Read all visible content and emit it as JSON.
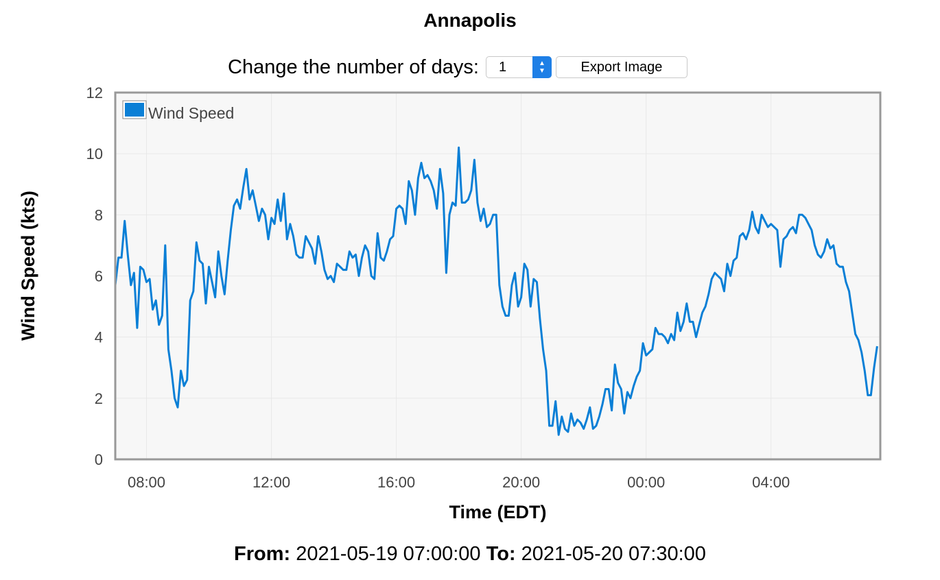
{
  "chart_data": {
    "type": "line",
    "title": "Annapolis",
    "xlabel": "Time (EDT)",
    "ylabel": "Wind Speed (kts)",
    "ylim": [
      0,
      12
    ],
    "xlim": [
      "2021-05-19 07:00",
      "2021-05-20 07:30"
    ],
    "yticks": [
      "0",
      "2",
      "4",
      "6",
      "8",
      "10",
      "12"
    ],
    "xticks": [
      {
        "label": "08:00",
        "t": "2021-05-19 08:00"
      },
      {
        "label": "12:00",
        "t": "2021-05-19 12:00"
      },
      {
        "label": "16:00",
        "t": "2021-05-19 16:00"
      },
      {
        "label": "20:00",
        "t": "2021-05-19 20:00"
      },
      {
        "label": "00:00",
        "t": "2021-05-20 00:00"
      },
      {
        "label": "04:00",
        "t": "2021-05-20 04:00"
      }
    ],
    "grid": true,
    "legend_position": "top-left",
    "series": [
      {
        "name": "Wind Speed",
        "color": "#0a7fd6",
        "points": [
          [
            "2021-05-19 07:00",
            5.7
          ],
          [
            "2021-05-19 07:06",
            6.6
          ],
          [
            "2021-05-19 07:12",
            6.6
          ],
          [
            "2021-05-19 07:18",
            7.8
          ],
          [
            "2021-05-19 07:24",
            6.7
          ],
          [
            "2021-05-19 07:30",
            5.7
          ],
          [
            "2021-05-19 07:36",
            6.1
          ],
          [
            "2021-05-19 07:42",
            4.3
          ],
          [
            "2021-05-19 07:48",
            6.3
          ],
          [
            "2021-05-19 07:54",
            6.2
          ],
          [
            "2021-05-19 08:00",
            5.8
          ],
          [
            "2021-05-19 08:06",
            5.9
          ],
          [
            "2021-05-19 08:12",
            4.9
          ],
          [
            "2021-05-19 08:18",
            5.2
          ],
          [
            "2021-05-19 08:24",
            4.4
          ],
          [
            "2021-05-19 08:30",
            4.7
          ],
          [
            "2021-05-19 08:36",
            7.0
          ],
          [
            "2021-05-19 08:42",
            3.6
          ],
          [
            "2021-05-19 08:48",
            2.9
          ],
          [
            "2021-05-19 08:54",
            2.0
          ],
          [
            "2021-05-19 09:00",
            1.7
          ],
          [
            "2021-05-19 09:06",
            2.9
          ],
          [
            "2021-05-19 09:12",
            2.4
          ],
          [
            "2021-05-19 09:18",
            2.6
          ],
          [
            "2021-05-19 09:24",
            5.2
          ],
          [
            "2021-05-19 09:30",
            5.5
          ],
          [
            "2021-05-19 09:36",
            7.1
          ],
          [
            "2021-05-19 09:42",
            6.5
          ],
          [
            "2021-05-19 09:48",
            6.4
          ],
          [
            "2021-05-19 09:54",
            5.1
          ],
          [
            "2021-05-19 10:00",
            6.3
          ],
          [
            "2021-05-19 10:06",
            5.8
          ],
          [
            "2021-05-19 10:12",
            5.3
          ],
          [
            "2021-05-19 10:18",
            6.8
          ],
          [
            "2021-05-19 10:24",
            6.0
          ],
          [
            "2021-05-19 10:30",
            5.4
          ],
          [
            "2021-05-19 10:36",
            6.5
          ],
          [
            "2021-05-19 10:42",
            7.5
          ],
          [
            "2021-05-19 10:48",
            8.3
          ],
          [
            "2021-05-19 10:54",
            8.5
          ],
          [
            "2021-05-19 11:00",
            8.2
          ],
          [
            "2021-05-19 11:06",
            8.9
          ],
          [
            "2021-05-19 11:12",
            9.5
          ],
          [
            "2021-05-19 11:18",
            8.5
          ],
          [
            "2021-05-19 11:24",
            8.8
          ],
          [
            "2021-05-19 11:30",
            8.3
          ],
          [
            "2021-05-19 11:36",
            7.8
          ],
          [
            "2021-05-19 11:42",
            8.2
          ],
          [
            "2021-05-19 11:48",
            8.0
          ],
          [
            "2021-05-19 11:54",
            7.2
          ],
          [
            "2021-05-19 12:00",
            7.9
          ],
          [
            "2021-05-19 12:06",
            7.7
          ],
          [
            "2021-05-19 12:12",
            8.5
          ],
          [
            "2021-05-19 12:18",
            7.8
          ],
          [
            "2021-05-19 12:24",
            8.7
          ],
          [
            "2021-05-19 12:30",
            7.2
          ],
          [
            "2021-05-19 12:36",
            7.7
          ],
          [
            "2021-05-19 12:42",
            7.3
          ],
          [
            "2021-05-19 12:48",
            6.7
          ],
          [
            "2021-05-19 12:54",
            6.6
          ],
          [
            "2021-05-19 13:00",
            6.6
          ],
          [
            "2021-05-19 13:06",
            7.3
          ],
          [
            "2021-05-19 13:12",
            7.1
          ],
          [
            "2021-05-19 13:18",
            6.9
          ],
          [
            "2021-05-19 13:24",
            6.4
          ],
          [
            "2021-05-19 13:30",
            7.3
          ],
          [
            "2021-05-19 13:36",
            6.8
          ],
          [
            "2021-05-19 13:42",
            6.2
          ],
          [
            "2021-05-19 13:48",
            5.9
          ],
          [
            "2021-05-19 13:54",
            6.0
          ],
          [
            "2021-05-19 14:00",
            5.8
          ],
          [
            "2021-05-19 14:06",
            6.4
          ],
          [
            "2021-05-19 14:12",
            6.3
          ],
          [
            "2021-05-19 14:18",
            6.2
          ],
          [
            "2021-05-19 14:24",
            6.2
          ],
          [
            "2021-05-19 14:30",
            6.8
          ],
          [
            "2021-05-19 14:36",
            6.6
          ],
          [
            "2021-05-19 14:42",
            6.7
          ],
          [
            "2021-05-19 14:48",
            6.0
          ],
          [
            "2021-05-19 14:54",
            6.6
          ],
          [
            "2021-05-19 15:00",
            7.0
          ],
          [
            "2021-05-19 15:06",
            6.8
          ],
          [
            "2021-05-19 15:12",
            6.0
          ],
          [
            "2021-05-19 15:18",
            5.9
          ],
          [
            "2021-05-19 15:24",
            7.4
          ],
          [
            "2021-05-19 15:30",
            6.6
          ],
          [
            "2021-05-19 15:36",
            6.5
          ],
          [
            "2021-05-19 15:42",
            6.8
          ],
          [
            "2021-05-19 15:48",
            7.2
          ],
          [
            "2021-05-19 15:54",
            7.3
          ],
          [
            "2021-05-19 16:00",
            8.2
          ],
          [
            "2021-05-19 16:06",
            8.3
          ],
          [
            "2021-05-19 16:12",
            8.2
          ],
          [
            "2021-05-19 16:18",
            7.7
          ],
          [
            "2021-05-19 16:24",
            9.1
          ],
          [
            "2021-05-19 16:30",
            8.8
          ],
          [
            "2021-05-19 16:36",
            8.0
          ],
          [
            "2021-05-19 16:42",
            9.2
          ],
          [
            "2021-05-19 16:48",
            9.7
          ],
          [
            "2021-05-19 16:54",
            9.2
          ],
          [
            "2021-05-19 17:00",
            9.3
          ],
          [
            "2021-05-19 17:06",
            9.1
          ],
          [
            "2021-05-19 17:12",
            8.8
          ],
          [
            "2021-05-19 17:18",
            8.2
          ],
          [
            "2021-05-19 17:24",
            9.5
          ],
          [
            "2021-05-19 17:30",
            8.7
          ],
          [
            "2021-05-19 17:36",
            6.1
          ],
          [
            "2021-05-19 17:42",
            8.0
          ],
          [
            "2021-05-19 17:48",
            8.4
          ],
          [
            "2021-05-19 17:54",
            8.3
          ],
          [
            "2021-05-19 18:00",
            10.2
          ],
          [
            "2021-05-19 18:06",
            8.4
          ],
          [
            "2021-05-19 18:12",
            8.4
          ],
          [
            "2021-05-19 18:18",
            8.5
          ],
          [
            "2021-05-19 18:24",
            8.8
          ],
          [
            "2021-05-19 18:30",
            9.8
          ],
          [
            "2021-05-19 18:36",
            8.4
          ],
          [
            "2021-05-19 18:42",
            7.8
          ],
          [
            "2021-05-19 18:48",
            8.2
          ],
          [
            "2021-05-19 18:54",
            7.6
          ],
          [
            "2021-05-19 19:00",
            7.7
          ],
          [
            "2021-05-19 19:06",
            8.0
          ],
          [
            "2021-05-19 19:12",
            8.0
          ],
          [
            "2021-05-19 19:18",
            5.7
          ],
          [
            "2021-05-19 19:24",
            5.0
          ],
          [
            "2021-05-19 19:30",
            4.7
          ],
          [
            "2021-05-19 19:36",
            4.7
          ],
          [
            "2021-05-19 19:42",
            5.7
          ],
          [
            "2021-05-19 19:48",
            6.1
          ],
          [
            "2021-05-19 19:54",
            5.0
          ],
          [
            "2021-05-19 20:00",
            5.3
          ],
          [
            "2021-05-19 20:06",
            6.4
          ],
          [
            "2021-05-19 20:12",
            6.2
          ],
          [
            "2021-05-19 20:18",
            5.0
          ],
          [
            "2021-05-19 20:24",
            5.9
          ],
          [
            "2021-05-19 20:30",
            5.8
          ],
          [
            "2021-05-19 20:36",
            4.6
          ],
          [
            "2021-05-19 20:42",
            3.6
          ],
          [
            "2021-05-19 20:48",
            2.9
          ],
          [
            "2021-05-19 20:54",
            1.1
          ],
          [
            "2021-05-19 21:00",
            1.1
          ],
          [
            "2021-05-19 21:06",
            1.9
          ],
          [
            "2021-05-19 21:12",
            0.8
          ],
          [
            "2021-05-19 21:18",
            1.4
          ],
          [
            "2021-05-19 21:24",
            1.0
          ],
          [
            "2021-05-19 21:30",
            0.9
          ],
          [
            "2021-05-19 21:36",
            1.5
          ],
          [
            "2021-05-19 21:42",
            1.1
          ],
          [
            "2021-05-19 21:48",
            1.3
          ],
          [
            "2021-05-19 21:54",
            1.2
          ],
          [
            "2021-05-19 22:00",
            1.0
          ],
          [
            "2021-05-19 22:06",
            1.3
          ],
          [
            "2021-05-19 22:12",
            1.7
          ],
          [
            "2021-05-19 22:18",
            1.0
          ],
          [
            "2021-05-19 22:24",
            1.1
          ],
          [
            "2021-05-19 22:30",
            1.4
          ],
          [
            "2021-05-19 22:36",
            1.8
          ],
          [
            "2021-05-19 22:42",
            2.3
          ],
          [
            "2021-05-19 22:48",
            2.3
          ],
          [
            "2021-05-19 22:54",
            1.6
          ],
          [
            "2021-05-19 23:00",
            3.1
          ],
          [
            "2021-05-19 23:06",
            2.5
          ],
          [
            "2021-05-19 23:12",
            2.3
          ],
          [
            "2021-05-19 23:18",
            1.5
          ],
          [
            "2021-05-19 23:24",
            2.2
          ],
          [
            "2021-05-19 23:30",
            2.0
          ],
          [
            "2021-05-19 23:36",
            2.4
          ],
          [
            "2021-05-19 23:42",
            2.7
          ],
          [
            "2021-05-19 23:48",
            2.9
          ],
          [
            "2021-05-19 23:54",
            3.8
          ],
          [
            "2021-05-20 00:00",
            3.4
          ],
          [
            "2021-05-20 00:06",
            3.5
          ],
          [
            "2021-05-20 00:12",
            3.6
          ],
          [
            "2021-05-20 00:18",
            4.3
          ],
          [
            "2021-05-20 00:24",
            4.1
          ],
          [
            "2021-05-20 00:30",
            4.1
          ],
          [
            "2021-05-20 00:36",
            4.0
          ],
          [
            "2021-05-20 00:42",
            3.8
          ],
          [
            "2021-05-20 00:48",
            4.1
          ],
          [
            "2021-05-20 00:54",
            3.9
          ],
          [
            "2021-05-20 01:00",
            4.8
          ],
          [
            "2021-05-20 01:06",
            4.2
          ],
          [
            "2021-05-20 01:12",
            4.5
          ],
          [
            "2021-05-20 01:18",
            5.1
          ],
          [
            "2021-05-20 01:24",
            4.5
          ],
          [
            "2021-05-20 01:30",
            4.5
          ],
          [
            "2021-05-20 01:36",
            4.0
          ],
          [
            "2021-05-20 01:42",
            4.4
          ],
          [
            "2021-05-20 01:48",
            4.8
          ],
          [
            "2021-05-20 01:54",
            5.0
          ],
          [
            "2021-05-20 02:00",
            5.4
          ],
          [
            "2021-05-20 02:06",
            5.9
          ],
          [
            "2021-05-20 02:12",
            6.1
          ],
          [
            "2021-05-20 02:18",
            6.0
          ],
          [
            "2021-05-20 02:24",
            5.9
          ],
          [
            "2021-05-20 02:30",
            5.5
          ],
          [
            "2021-05-20 02:36",
            6.4
          ],
          [
            "2021-05-20 02:42",
            6.0
          ],
          [
            "2021-05-20 02:48",
            6.5
          ],
          [
            "2021-05-20 02:54",
            6.6
          ],
          [
            "2021-05-20 03:00",
            7.3
          ],
          [
            "2021-05-20 03:06",
            7.4
          ],
          [
            "2021-05-20 03:12",
            7.2
          ],
          [
            "2021-05-20 03:18",
            7.5
          ],
          [
            "2021-05-20 03:24",
            8.1
          ],
          [
            "2021-05-20 03:30",
            7.6
          ],
          [
            "2021-05-20 03:36",
            7.4
          ],
          [
            "2021-05-20 03:42",
            8.0
          ],
          [
            "2021-05-20 03:48",
            7.8
          ],
          [
            "2021-05-20 03:54",
            7.6
          ],
          [
            "2021-05-20 04:00",
            7.7
          ],
          [
            "2021-05-20 04:06",
            7.6
          ],
          [
            "2021-05-20 04:12",
            7.5
          ],
          [
            "2021-05-20 04:18",
            6.3
          ],
          [
            "2021-05-20 04:24",
            7.2
          ],
          [
            "2021-05-20 04:30",
            7.3
          ],
          [
            "2021-05-20 04:36",
            7.5
          ],
          [
            "2021-05-20 04:42",
            7.6
          ],
          [
            "2021-05-20 04:48",
            7.4
          ],
          [
            "2021-05-20 04:54",
            8.0
          ],
          [
            "2021-05-20 05:00",
            8.0
          ],
          [
            "2021-05-20 05:06",
            7.9
          ],
          [
            "2021-05-20 05:12",
            7.7
          ],
          [
            "2021-05-20 05:18",
            7.5
          ],
          [
            "2021-05-20 05:24",
            7.0
          ],
          [
            "2021-05-20 05:30",
            6.7
          ],
          [
            "2021-05-20 05:36",
            6.6
          ],
          [
            "2021-05-20 05:42",
            6.8
          ],
          [
            "2021-05-20 05:48",
            7.2
          ],
          [
            "2021-05-20 05:54",
            6.9
          ],
          [
            "2021-05-20 06:00",
            7.0
          ],
          [
            "2021-05-20 06:06",
            6.4
          ],
          [
            "2021-05-20 06:12",
            6.3
          ],
          [
            "2021-05-20 06:18",
            6.3
          ],
          [
            "2021-05-20 06:24",
            5.8
          ],
          [
            "2021-05-20 06:30",
            5.5
          ],
          [
            "2021-05-20 06:36",
            4.8
          ],
          [
            "2021-05-20 06:42",
            4.1
          ],
          [
            "2021-05-20 06:48",
            3.9
          ],
          [
            "2021-05-20 06:54",
            3.5
          ],
          [
            "2021-05-20 07:00",
            2.9
          ],
          [
            "2021-05-20 07:06",
            2.1
          ],
          [
            "2021-05-20 07:12",
            2.1
          ],
          [
            "2021-05-20 07:18",
            3.0
          ],
          [
            "2021-05-20 07:24",
            3.7
          ]
        ]
      }
    ]
  },
  "controls": {
    "days_label": "Change the number of days:",
    "days_value": "1",
    "export_label": "Export Image"
  },
  "range": {
    "from_label": "From:",
    "from_value": "2021-05-19 07:00:00",
    "to_label": "To:",
    "to_value": "2021-05-20 07:30:00"
  },
  "colors": {
    "plot_background": "#f7f7f7",
    "plot_border": "#999999",
    "grid": "#e8e8e8",
    "line": "#0a7fd6"
  }
}
